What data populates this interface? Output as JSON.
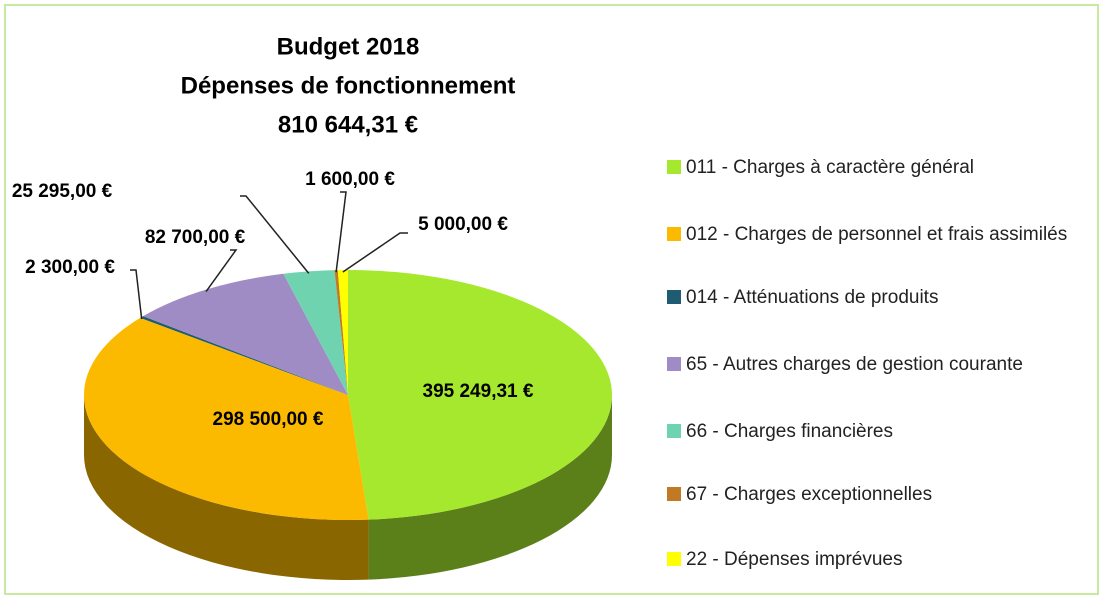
{
  "chart_data": {
    "type": "pie3d",
    "title": [
      "Budget 2018",
      "Dépenses de fonctionnement",
      "810 644,31 €"
    ],
    "categories": [
      "011 - Charges à caractère général",
      "012 - Charges de personnel et frais assimilés",
      "014 - Atténuations de produits",
      "65 - Autres charges de gestion courante",
      "66 - Charges financières",
      "67 - Charges exceptionnelles",
      "22 - Dépenses imprévues"
    ],
    "values": [
      395249.31,
      298500,
      2300,
      82700,
      25295,
      1600,
      5000
    ],
    "value_labels": [
      "395 249,31 €",
      "298 500,00 €",
      "2 300,00 €",
      "82 700,00 €",
      "25 295,00 €",
      "1 600,00 €",
      "5 000,00 €"
    ],
    "colors": [
      "#a6e82e",
      "#fbb900",
      "#1f5c73",
      "#a08cc4",
      "#6fd3b0",
      "#c07a24",
      "#ffff00"
    ],
    "legend": "right"
  }
}
